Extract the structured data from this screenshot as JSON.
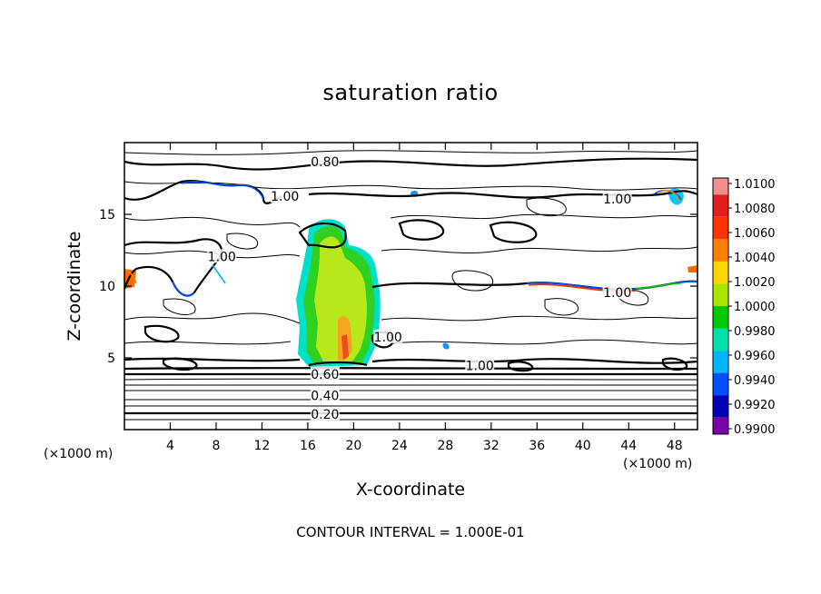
{
  "chart_data": {
    "type": "heatmap",
    "title": "saturation ratio",
    "xlabel": "X-coordinate",
    "ylabel": "Z-coordinate",
    "x_unit_left": "(×1000 m)",
    "x_unit_right": "(×1000 m)",
    "note": "CONTOUR INTERVAL = 1.000E-01",
    "xlim": [
      0,
      50
    ],
    "ylim": [
      0,
      20
    ],
    "x_ticks": [
      4,
      8,
      12,
      16,
      20,
      24,
      28,
      32,
      36,
      40,
      44,
      48
    ],
    "y_ticks": [
      5,
      10,
      15
    ],
    "contour_labels": [
      {
        "text": "0.80",
        "x": 17.5,
        "z": 18.6
      },
      {
        "text": "1.00",
        "x": 14,
        "z": 16.2
      },
      {
        "text": "1.00",
        "x": 8.5,
        "z": 12.0
      },
      {
        "text": "1.00",
        "x": 43,
        "z": 16.0
      },
      {
        "text": "1.00",
        "x": 43,
        "z": 9.5
      },
      {
        "text": "1.00",
        "x": 23,
        "z": 6.4
      },
      {
        "text": "1.00",
        "x": 31,
        "z": 4.4
      },
      {
        "text": "0.60",
        "x": 17.5,
        "z": 3.8
      },
      {
        "text": "0.40",
        "x": 17.5,
        "z": 2.3
      },
      {
        "text": "0.20",
        "x": 17.5,
        "z": 1.0
      }
    ],
    "colorbar": {
      "levels": [
        "1.0100",
        "1.0080",
        "1.0060",
        "1.0040",
        "1.0020",
        "1.0000",
        "0.9980",
        "0.9960",
        "0.9940",
        "0.9920",
        "0.9900"
      ],
      "colors": [
        "#f28e8e",
        "#e02020",
        "#ff3300",
        "#ff7f00",
        "#ffd400",
        "#a8e600",
        "#00c800",
        "#00e0a8",
        "#00b4ff",
        "#0050ff",
        "#0000b4",
        "#7a00a8"
      ]
    },
    "grid": false
  }
}
